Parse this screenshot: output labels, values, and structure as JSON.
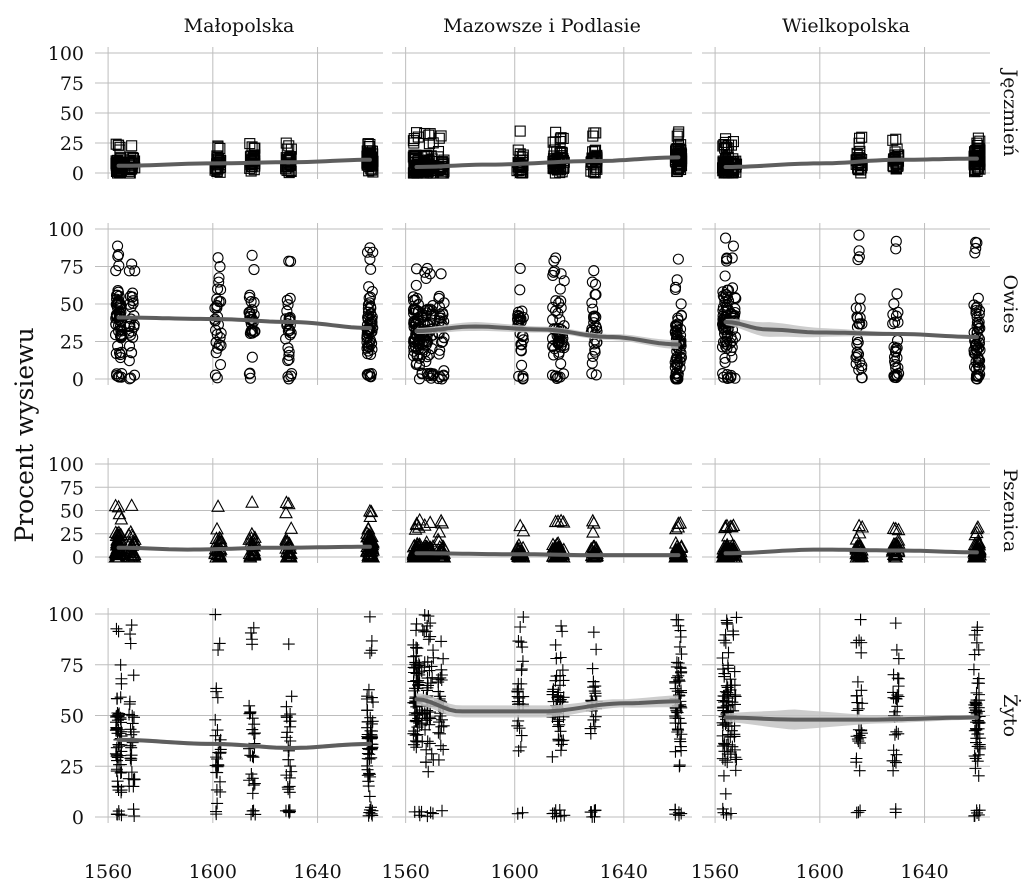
{
  "chart_data": {
    "type": "scatter",
    "title": "",
    "xlabel": "",
    "ylabel": "Procent wysiewu",
    "xlim": [
      1555,
      1665
    ],
    "ylim": [
      0,
      100
    ],
    "x_ticks": [
      1560,
      1600,
      1640
    ],
    "y_ticks": [
      0,
      25,
      50,
      75,
      100
    ],
    "grid": true,
    "columns": [
      "Małopolska",
      "Mazowsze i Podlasie",
      "Wielkopolska"
    ],
    "rows": [
      {
        "name": "Jęczmień",
        "marker": "square"
      },
      {
        "name": "Owies",
        "marker": "circle"
      },
      {
        "name": "Pszenica",
        "marker": "triangle"
      },
      {
        "name": "Żyto",
        "marker": "plus"
      }
    ],
    "survey_years": [
      [
        1564,
        1569,
        1602,
        1615,
        1629,
        1660
      ],
      [
        1564,
        1567,
        1569,
        1573,
        1602,
        1615,
        1617,
        1629,
        1660
      ],
      [
        1564,
        1567,
        1615,
        1629,
        1660
      ]
    ],
    "spread": [
      [
        [
          0,
          25
        ],
        [
          0,
          35
        ],
        [
          0,
          30
        ]
      ],
      [
        [
          0,
          92
        ],
        [
          0,
          82
        ],
        [
          0,
          100
        ]
      ],
      [
        [
          0,
          60
        ],
        [
          0,
          40
        ],
        [
          0,
          35
        ]
      ],
      [
        [
          0,
          100
        ],
        [
          0,
          100
        ],
        [
          0,
          100
        ]
      ]
    ],
    "trends": [
      [
        {
          "x": [
            1564,
            1600,
            1630,
            1660
          ],
          "y": [
            6,
            8,
            9,
            11
          ],
          "band": [
            0,
            0,
            0,
            0
          ]
        },
        {
          "x": [
            1564,
            1590,
            1630,
            1660
          ],
          "y": [
            5,
            7,
            10,
            13
          ],
          "band": [
            0,
            0,
            0,
            0
          ]
        },
        {
          "x": [
            1564,
            1600,
            1630,
            1660
          ],
          "y": [
            5,
            8,
            11,
            12
          ],
          "band": [
            0,
            0,
            0,
            0
          ]
        }
      ],
      [
        {
          "x": [
            1564,
            1600,
            1630,
            1660
          ],
          "y": [
            41,
            40,
            38,
            34
          ],
          "band": [
            1,
            1,
            1,
            1
          ]
        },
        {
          "x": [
            1564,
            1585,
            1610,
            1635,
            1660
          ],
          "y": [
            32,
            35,
            33,
            28,
            23
          ],
          "band": [
            2,
            3,
            2,
            2,
            3
          ]
        },
        {
          "x": [
            1564,
            1580,
            1600,
            1630,
            1660
          ],
          "y": [
            38,
            33,
            31,
            30,
            28
          ],
          "band": [
            2,
            5,
            3,
            1,
            1
          ]
        }
      ],
      [
        {
          "x": [
            1564,
            1590,
            1625,
            1660
          ],
          "y": [
            10,
            8,
            10,
            11
          ],
          "band": [
            1,
            1,
            1,
            1
          ]
        },
        {
          "x": [
            1564,
            1600,
            1630,
            1660
          ],
          "y": [
            4,
            3,
            2,
            2
          ],
          "band": [
            0,
            0,
            0,
            0
          ]
        },
        {
          "x": [
            1564,
            1600,
            1630,
            1660
          ],
          "y": [
            4,
            8,
            7,
            5
          ],
          "band": [
            0,
            0,
            0,
            0
          ]
        }
      ],
      [
        {
          "x": [
            1564,
            1600,
            1630,
            1660
          ],
          "y": [
            38,
            36,
            34,
            36
          ],
          "band": [
            1,
            1,
            1,
            1
          ]
        },
        {
          "x": [
            1564,
            1580,
            1610,
            1640,
            1660
          ],
          "y": [
            58,
            52,
            52,
            56,
            57
          ],
          "band": [
            3,
            3,
            3,
            2,
            3
          ]
        },
        {
          "x": [
            1564,
            1590,
            1620,
            1660
          ],
          "y": [
            49,
            48,
            48,
            49
          ],
          "band": [
            2,
            5,
            2,
            1
          ]
        }
      ]
    ]
  }
}
